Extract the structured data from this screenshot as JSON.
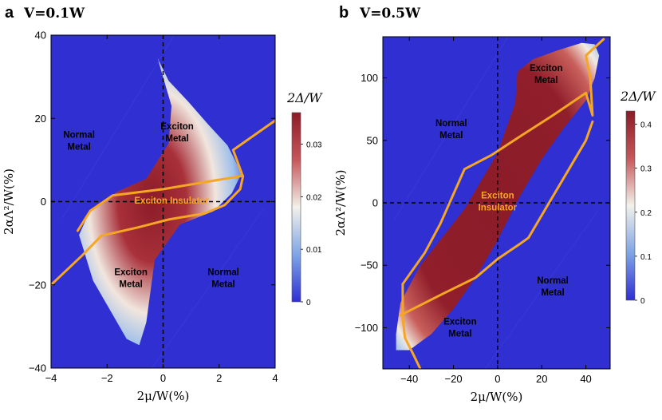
{
  "chart_data": [
    {
      "type": "heatmap",
      "panel_label": "a",
      "title": "V=0.1W",
      "xlabel": "2μ/W(%)",
      "ylabel": "2αΛ²/W(%)",
      "xlim": [
        -4,
        4
      ],
      "ylim": [
        -40,
        40
      ],
      "xticks": [
        -4,
        -2,
        0,
        2,
        4
      ],
      "yticks": [
        -40,
        -20,
        0,
        20,
        40
      ],
      "xtick_labels": [
        "−4",
        "−2",
        "0",
        "2",
        "4"
      ],
      "ytick_labels": [
        "−40",
        "−20",
        "0",
        "20",
        "40"
      ],
      "colorbar": {
        "label": "2Δ/W",
        "range": [
          0,
          0.036
        ],
        "ticks": [
          0,
          0.01,
          0.02,
          0.03
        ],
        "tick_labels": [
          "0",
          "0.01",
          "0.02",
          "0.03"
        ]
      },
      "region_labels": [
        {
          "text": "Normal\nMetal",
          "x": -3.0,
          "y": 14,
          "color": "#000000"
        },
        {
          "text": "Exciton\nMetal",
          "x": 0.5,
          "y": 16,
          "color": "#000000"
        },
        {
          "text": "Exciton Insulator",
          "x": 0.3,
          "y": -0.5,
          "color": "#f5a623"
        },
        {
          "text": "Exciton\nMetal",
          "x": -1.15,
          "y": -19,
          "color": "#000000"
        },
        {
          "text": "Normal\nMetal",
          "x": 2.15,
          "y": -19,
          "color": "#000000"
        }
      ],
      "gap_region": [
        [
          -0.2,
          34.5
        ],
        [
          0.2,
          29.0
        ],
        [
          0.9,
          24.0
        ],
        [
          1.6,
          18.6
        ],
        [
          2.3,
          13.5
        ],
        [
          2.8,
          6.8
        ],
        [
          2.45,
          2.0
        ],
        [
          1.8,
          -2.3
        ],
        [
          0.6,
          -5.5
        ],
        [
          -0.3,
          -14.0
        ],
        [
          -0.6,
          -29.0
        ],
        [
          -0.85,
          -34.5
        ],
        [
          -1.3,
          -33.0
        ],
        [
          -1.9,
          -26.0
        ],
        [
          -2.5,
          -19.0
        ],
        [
          -3.0,
          -8.0
        ],
        [
          -2.6,
          -2.0
        ],
        [
          -1.6,
          2.5
        ],
        [
          -0.6,
          5.5
        ],
        [
          0.2,
          14.0
        ],
        [
          0.3,
          23.0
        ]
      ],
      "boundary_lines": [
        [
          [
            -4.0,
            -20.0
          ],
          [
            -2.9,
            -13.0
          ],
          [
            -2.2,
            -8.2
          ],
          [
            -0.9,
            -6.2
          ],
          [
            0.2,
            -4.3
          ],
          [
            1.5,
            -2.8
          ],
          [
            2.2,
            -0.8
          ],
          [
            2.75,
            3.0
          ],
          [
            2.85,
            6.0
          ],
          [
            2.5,
            12.4
          ],
          [
            4.0,
            19.5
          ]
        ],
        [
          [
            -3.05,
            -7.0
          ],
          [
            -2.6,
            -2.2
          ],
          [
            -1.8,
            1.5
          ],
          [
            0.0,
            3.0
          ],
          [
            1.5,
            4.7
          ],
          [
            2.85,
            6.2
          ]
        ]
      ],
      "dashed_lines": {
        "x": 0,
        "y": 0
      }
    },
    {
      "type": "heatmap",
      "panel_label": "b",
      "title": "V=0.5W",
      "xlabel": "2μ/W(%)",
      "ylabel": "2αΛ²/W(%)",
      "xlim": [
        -52,
        51
      ],
      "ylim": [
        -133,
        133
      ],
      "xticks": [
        -40,
        -20,
        0,
        20,
        40
      ],
      "yticks": [
        -100,
        -50,
        0,
        50,
        100
      ],
      "xtick_labels": [
        "−40",
        "−20",
        "0",
        "20",
        "40"
      ],
      "ytick_labels": [
        "−100",
        "−50",
        "0",
        "50",
        "100"
      ],
      "colorbar": {
        "label": "2Δ/W",
        "range": [
          0,
          0.43
        ],
        "ticks": [
          0,
          0.1,
          0.2,
          0.3,
          0.4
        ],
        "tick_labels": [
          "0",
          "0.1",
          "0.2",
          "0.3",
          "0.4"
        ]
      },
      "region_labels": [
        {
          "text": "Exciton\nMetal",
          "x": 22,
          "y": 101,
          "color": "#000000"
        },
        {
          "text": "Normal\nMetal",
          "x": -21,
          "y": 57,
          "color": "#000000"
        },
        {
          "text": "Exciton\nInsulator",
          "x": 0,
          "y": -1,
          "color": "#f5a623"
        },
        {
          "text": "Normal\nMetal",
          "x": 25,
          "y": -69,
          "color": "#000000"
        },
        {
          "text": "Exciton\nMetal",
          "x": -17,
          "y": -102,
          "color": "#000000"
        }
      ],
      "gap_region": [
        [
          9,
          105
        ],
        [
          16,
          115
        ],
        [
          27,
          122
        ],
        [
          38,
          128
        ],
        [
          44,
          127
        ],
        [
          46,
          118
        ],
        [
          44,
          100
        ],
        [
          40,
          82
        ],
        [
          30,
          60
        ],
        [
          20,
          35
        ],
        [
          10,
          5
        ],
        [
          0,
          -30
        ],
        [
          -10,
          -60
        ],
        [
          -20,
          -85
        ],
        [
          -30,
          -105
        ],
        [
          -40,
          -118
        ],
        [
          -46,
          -118
        ],
        [
          -46,
          -105
        ],
        [
          -44,
          -80
        ],
        [
          -35,
          -50
        ],
        [
          -15,
          -5
        ],
        [
          0,
          40
        ],
        [
          8,
          80
        ]
      ],
      "boundary_lines": [
        [
          [
            -43,
            -65
          ],
          [
            -33,
            -40
          ],
          [
            -26,
            -17
          ],
          [
            -15,
            27
          ],
          [
            -3,
            38
          ],
          [
            10,
            53
          ],
          [
            25,
            70
          ],
          [
            40,
            88
          ]
        ],
        [
          [
            -44,
            -90
          ],
          [
            -25,
            -73
          ],
          [
            -10,
            -60
          ],
          [
            0,
            -45
          ],
          [
            10,
            -33
          ],
          [
            14,
            -28
          ],
          [
            20,
            -10
          ],
          [
            30,
            20
          ],
          [
            40,
            50
          ],
          [
            43,
            65
          ]
        ],
        [
          [
            -43,
            -65
          ],
          [
            -43,
            -92
          ],
          [
            -42,
            -108
          ],
          [
            -38,
            -122
          ],
          [
            -35,
            -133
          ]
        ],
        [
          [
            40,
            88
          ],
          [
            43,
            70
          ],
          [
            42,
            100
          ],
          [
            40,
            118
          ],
          [
            48,
            131
          ]
        ]
      ],
      "dashed_lines": {
        "x": 0,
        "y": 0
      }
    }
  ]
}
